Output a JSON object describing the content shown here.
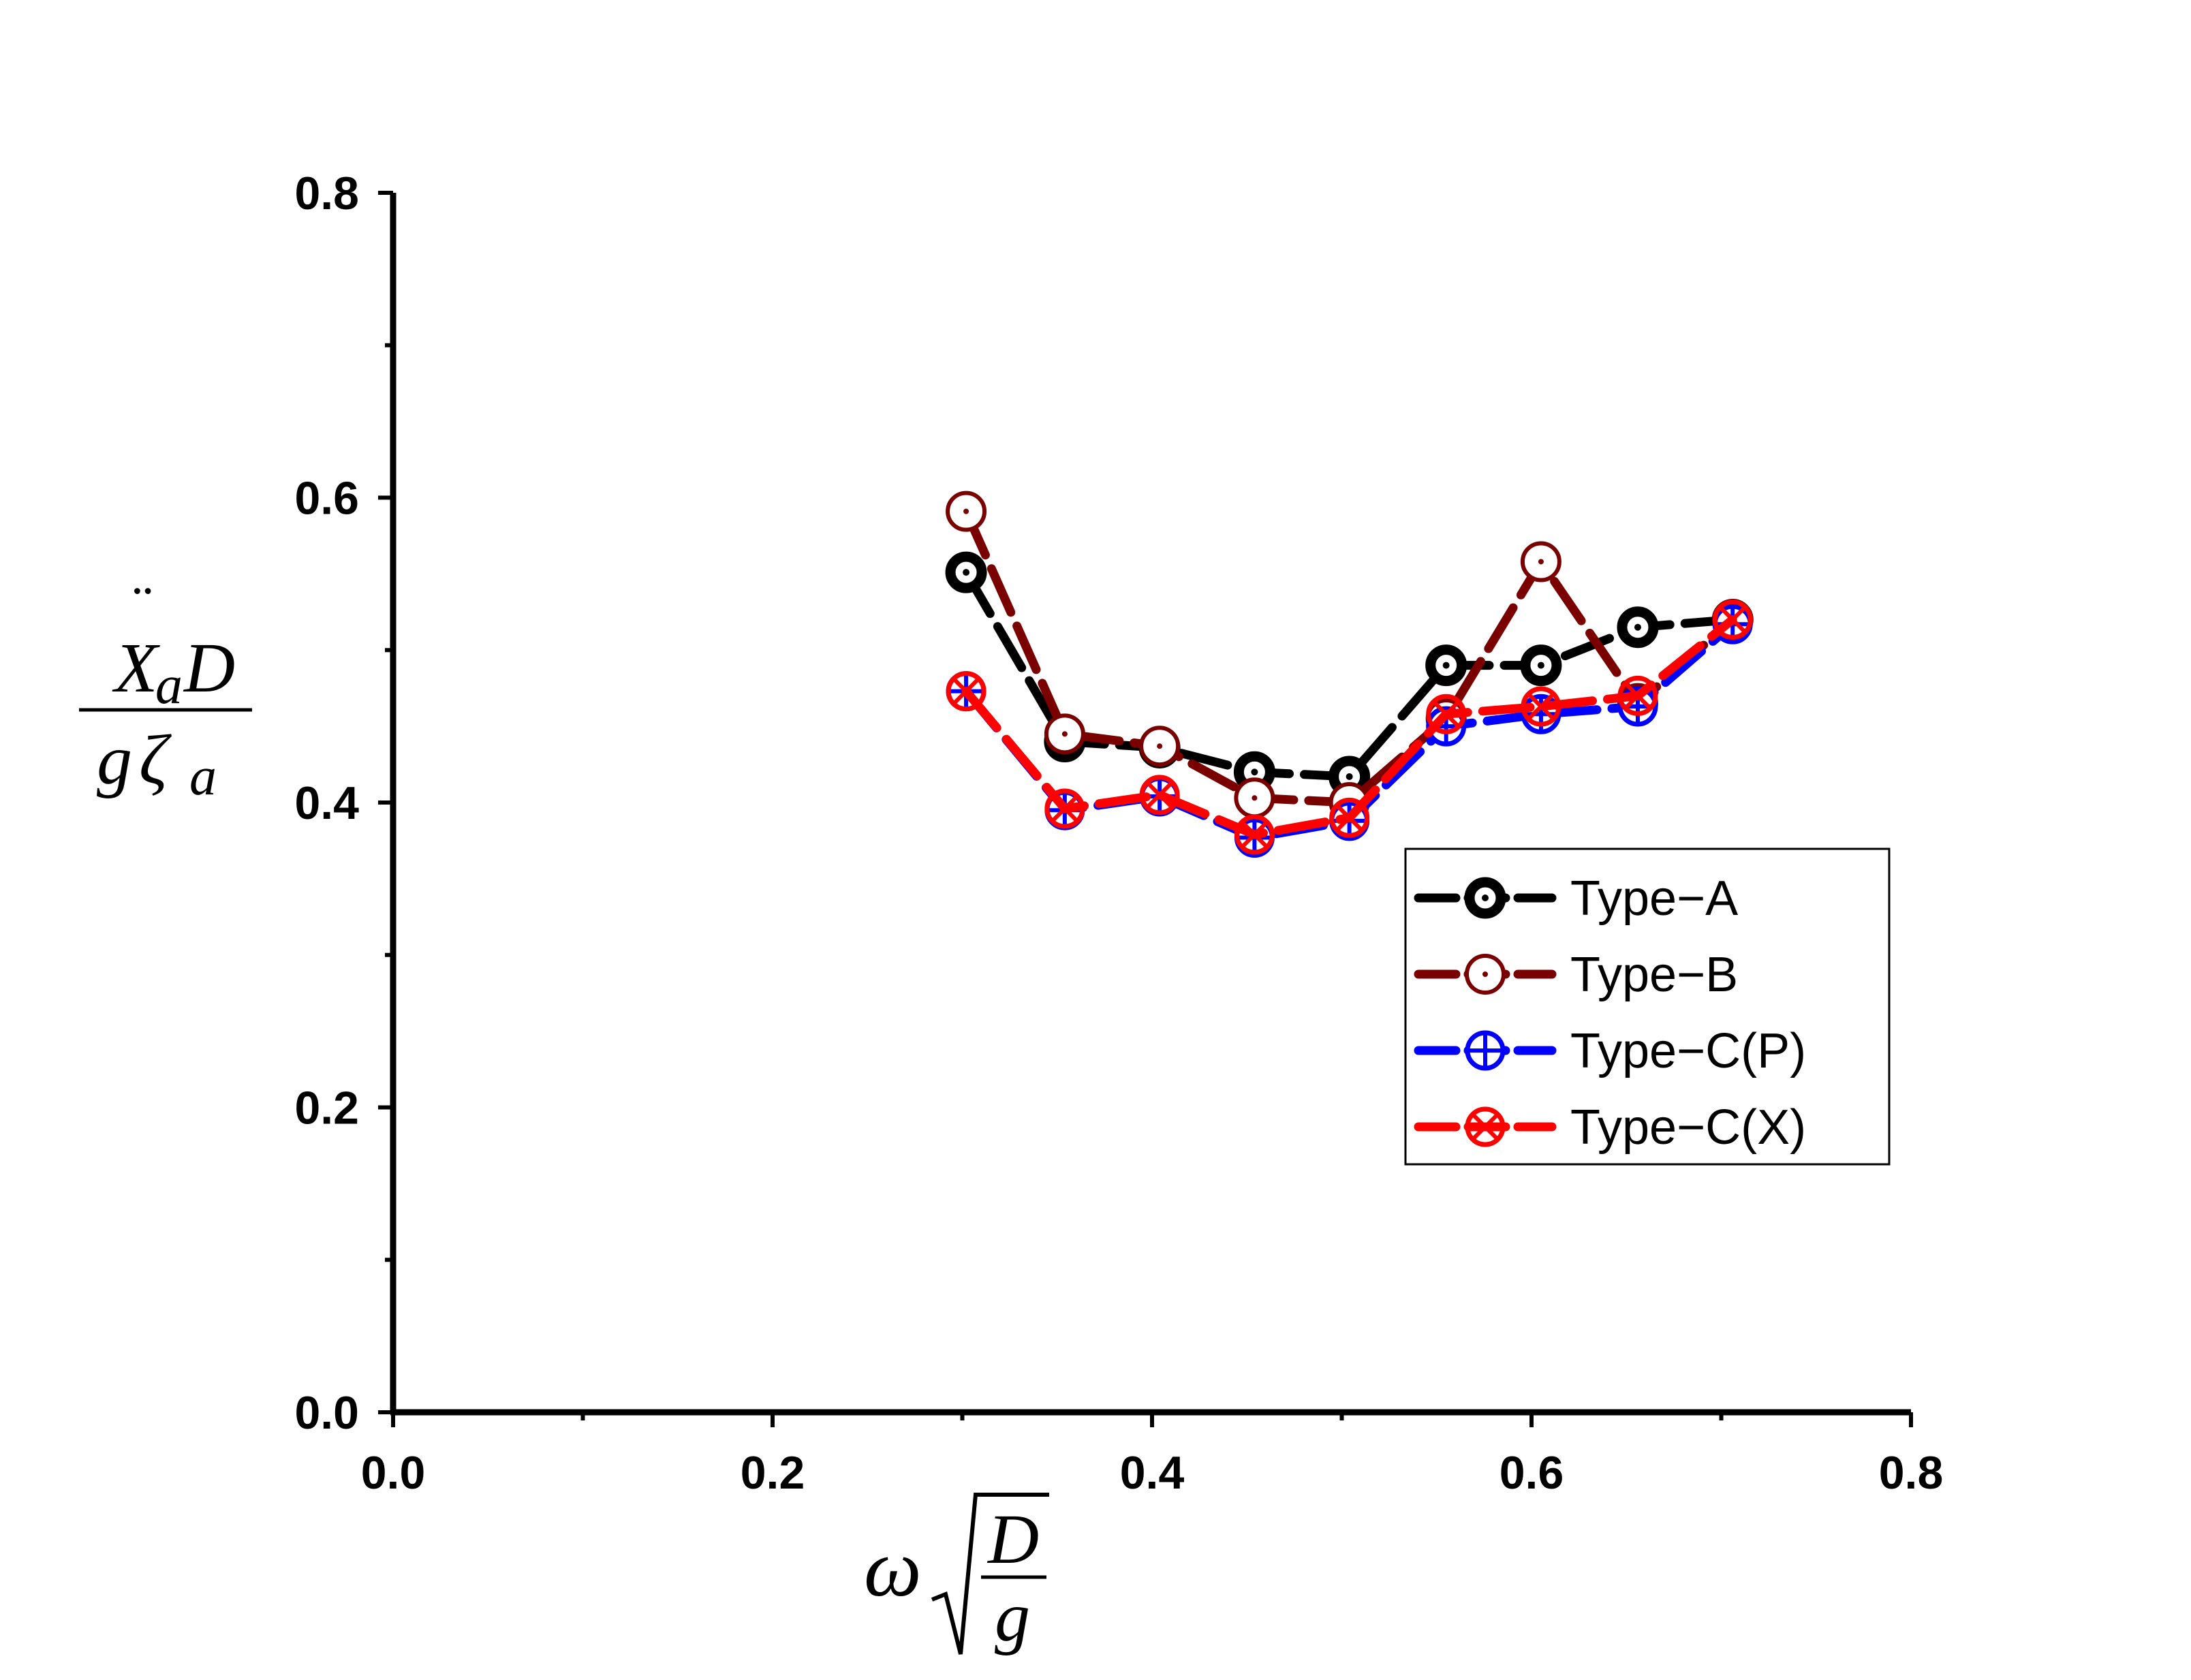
{
  "chart_data": {
    "type": "line",
    "xlim": [
      0,
      0.8
    ],
    "ylim": [
      0,
      0.8
    ],
    "x_ticks": [
      "0.0",
      "0.2",
      "0.4",
      "0.6",
      "0.8"
    ],
    "y_ticks": [
      "0.0",
      "0.2",
      "0.4",
      "0.6",
      "0.8"
    ],
    "xlabel": {
      "omega": "ω",
      "num": "D",
      "den": "g"
    },
    "ylabel": {
      "num_x": "X",
      "num_dots": "¨",
      "num_sub": "a",
      "num_d": "D",
      "den_g": "g",
      "den_zeta": "ζ",
      "den_sub": "a"
    },
    "legend_position": "center-right",
    "grid": false,
    "x": [
      0.302,
      0.354,
      0.404,
      0.454,
      0.504,
      0.555,
      0.605,
      0.656,
      0.706
    ],
    "series": [
      {
        "name": "Type−A",
        "color": "#000000",
        "marker": "dot-circle-bold",
        "values": [
          0.551,
          0.44,
          0.436,
          0.42,
          0.417,
          0.49,
          0.49,
          0.515,
          0.52
        ]
      },
      {
        "name": "Type−B",
        "color": "#7a0000",
        "marker": "dot-circle",
        "values": [
          0.591,
          0.445,
          0.437,
          0.403,
          0.4,
          0.455,
          0.558,
          0.465,
          0.52
        ]
      },
      {
        "name": "Type−C(P)",
        "color": "#0000ff",
        "marker": "circle-plus",
        "values": [
          0.473,
          0.395,
          0.404,
          0.377,
          0.388,
          0.45,
          0.458,
          0.463,
          0.517
        ]
      },
      {
        "name": "Type−C(X)",
        "color": "#ff0000",
        "marker": "circle-x",
        "values": [
          0.473,
          0.396,
          0.405,
          0.379,
          0.39,
          0.458,
          0.463,
          0.47,
          0.52
        ]
      }
    ]
  }
}
